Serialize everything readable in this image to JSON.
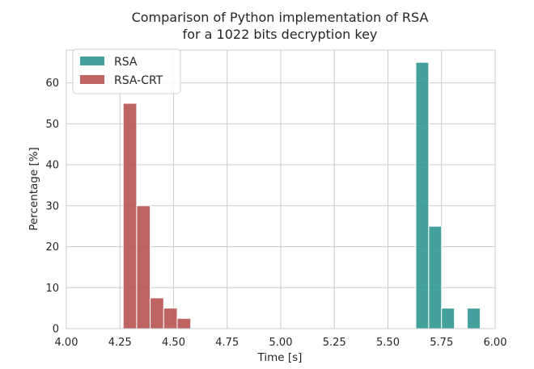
{
  "chart_data": {
    "type": "bar",
    "title": "Comparison of Python implementation of RSA",
    "subtitle": "for a 1022 bits decryption key",
    "xlabel": "Time [s]",
    "ylabel": "Percentage [%]",
    "xlim": [
      4.0,
      6.0
    ],
    "ylim": [
      0,
      68
    ],
    "xticks": [
      4.0,
      4.25,
      4.5,
      4.75,
      5.0,
      5.25,
      5.5,
      5.75,
      6.0
    ],
    "xtick_labels": [
      "4.00",
      "4.25",
      "4.50",
      "4.75",
      "5.00",
      "5.25",
      "5.50",
      "5.75",
      "6.00"
    ],
    "yticks": [
      0,
      10,
      20,
      30,
      40,
      50,
      60
    ],
    "ytick_labels": [
      "0",
      "10",
      "20",
      "30",
      "40",
      "50",
      "60"
    ],
    "grid": true,
    "legend_position": "top-left",
    "series": [
      {
        "name": "RSA",
        "color": "#2a9490",
        "bins": [
          {
            "x0": 5.63,
            "x1": 5.69,
            "value": 65
          },
          {
            "x0": 5.69,
            "x1": 5.75,
            "value": 25
          },
          {
            "x0": 5.75,
            "x1": 5.81,
            "value": 5
          },
          {
            "x0": 5.87,
            "x1": 5.93,
            "value": 5
          }
        ]
      },
      {
        "name": "RSA-CRT",
        "color": "#b54e4d",
        "bins": [
          {
            "x0": 4.265,
            "x1": 4.328,
            "value": 55
          },
          {
            "x0": 4.328,
            "x1": 4.391,
            "value": 30
          },
          {
            "x0": 4.391,
            "x1": 4.454,
            "value": 7.5
          },
          {
            "x0": 4.454,
            "x1": 4.517,
            "value": 5
          },
          {
            "x0": 4.517,
            "x1": 4.58,
            "value": 2.5
          }
        ]
      }
    ]
  }
}
